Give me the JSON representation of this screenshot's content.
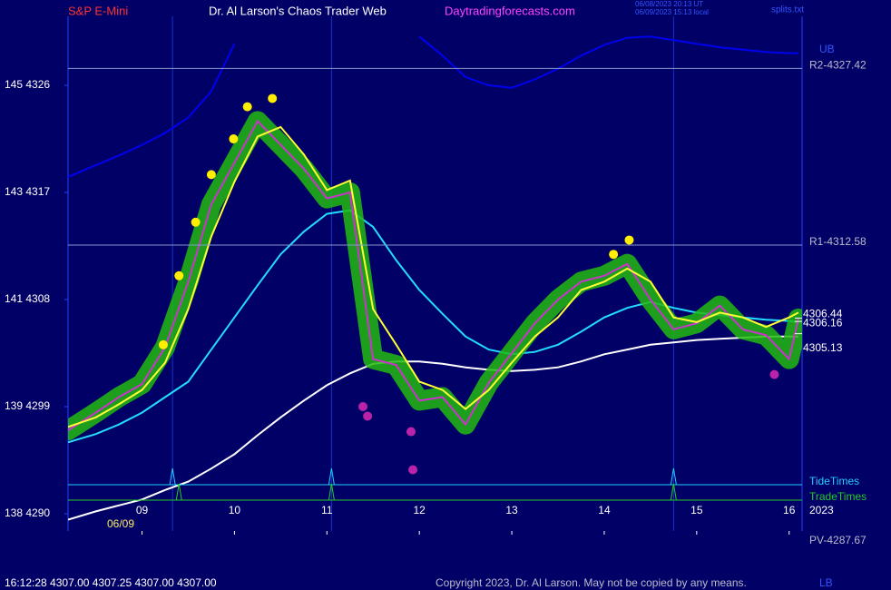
{
  "header": {
    "symbol": "S&P E-Mini",
    "site": "Dr. Al Larson's Chaos Trader Web",
    "url": "Daytradingforecasts.com",
    "time_ut": "06/08/2023 20:13 UT",
    "time_local": "06/09/2023 15:13 local",
    "file": "splits.txt"
  },
  "chart_data": {
    "type": "line",
    "x": [
      8.2,
      8.5,
      8.75,
      9,
      9.25,
      9.5,
      9.75,
      10,
      10.25,
      10.5,
      10.75,
      11,
      11.25,
      11.5,
      11.75,
      12,
      12.25,
      12.5,
      12.75,
      13,
      13.25,
      13.5,
      13.75,
      14,
      14.25,
      14.5,
      14.75,
      15,
      15.25,
      15.5,
      15.75,
      16,
      16.1
    ],
    "xlim": [
      8.2,
      16.14
    ],
    "xticks": [
      {
        "value": 9,
        "label": "09"
      },
      10,
      11,
      12,
      13,
      14,
      15,
      16
    ],
    "ylim": [
      4288.55,
      4331.8
    ],
    "yticks": [
      {
        "value": 4326,
        "label": "145  4326"
      },
      {
        "value": 4317,
        "label": "143  4317"
      },
      {
        "value": 4308,
        "label": "141  4308"
      },
      {
        "value": 4299,
        "label": "139  4299"
      },
      {
        "value": 4290,
        "label": "138  4290"
      }
    ],
    "date_label": "06/09",
    "year_label": "2023",
    "series": [
      {
        "color": "#0000ee",
        "values": [
          4318.3,
          4319.3,
          4320.1,
          4321.0,
          4322.0,
          4323.3,
          4325.5,
          4329.5,
          null,
          null,
          null,
          null,
          null,
          null,
          null,
          4330.1,
          4328.5,
          4326.7,
          4326.0,
          4325.8,
          4326.5,
          4327.4,
          4328.5,
          4329.4,
          4330.0,
          4330.1,
          4329.8,
          4329.5,
          4329.2,
          4329.0,
          4328.8,
          4328.7,
          4328.7
        ]
      },
      {
        "color": "#ffffff",
        "values": [
          4289.5,
          4290.2,
          4290.7,
          4291.2,
          4292.0,
          4292.7,
          4293.8,
          4295.0,
          4296.6,
          4298.1,
          4299.5,
          4300.8,
          4301.8,
          4302.6,
          4302.8,
          4302.8,
          4302.6,
          4302.3,
          4302.1,
          4302.0,
          4302.1,
          4302.3,
          4302.8,
          4303.4,
          4303.8,
          4304.2,
          4304.4,
          4304.6,
          4304.7,
          4304.8,
          4304.9,
          4304.9,
          4304.9
        ]
      },
      {
        "color": "#22ddff",
        "values": [
          4296.0,
          4296.7,
          4297.5,
          4298.5,
          4299.8,
          4301.1,
          4303.8,
          4306.5,
          4309.2,
          4311.8,
          4313.7,
          4315.2,
          4315.5,
          4314.1,
          4311.3,
          4308.8,
          4306.8,
          4304.9,
          4303.8,
          4303.4,
          4303.6,
          4304.2,
          4305.3,
          4306.5,
          4307.3,
          4307.8,
          4307.3,
          4306.9,
          4306.7,
          4306.5,
          4306.3,
          4306.2,
          4306.1
        ]
      },
      {
        "color": "#cc33cc",
        "glow_color": "#22bb11",
        "values": [
          4297.0,
          4298.5,
          4299.8,
          4300.9,
          4304.0,
          4309.5,
          4316.0,
          4319.5,
          4323.0,
          4321.0,
          4319.0,
          4316.5,
          4317.0,
          4303.0,
          4302.5,
          4299.5,
          4299.8,
          4297.5,
          4301.0,
          4303.5,
          4306.0,
          4308.0,
          4309.5,
          4310.0,
          4311.0,
          4308.0,
          4305.5,
          4306.0,
          4307.5,
          4305.5,
          4305.0,
          4303.0,
          4306.4
        ]
      },
      {
        "color": "#ffff33",
        "values": [
          4297.3,
          4298.1,
          4299.2,
          4300.4,
          4302.7,
          4307.2,
          4313.3,
          4317.9,
          4321.7,
          4322.5,
          4320.2,
          4317.2,
          4318.0,
          4307.2,
          4304.2,
          4301.1,
          4300.4,
          4298.8,
          4300.4,
          4302.7,
          4304.9,
          4306.5,
          4308.8,
          4309.5,
          4310.6,
          4309.5,
          4306.5,
          4306.1,
          4306.9,
          4306.5,
          4305.7,
          4306.5,
          4306.9
        ]
      }
    ],
    "levels": [
      {
        "label": "R2-4327.42",
        "value": 4327.42
      },
      {
        "label": "R1-4312.58",
        "value": 4312.58
      }
    ],
    "pivot_label": "PV-4287.67",
    "upper_band_label": "UB",
    "lower_band_label": "LB",
    "price_tags": [
      {
        "label": "4306.44",
        "value": 4306.44
      },
      {
        "label": "4306.16",
        "value": 4306.16
      },
      {
        "label": "4305.13",
        "value": 4305.13
      }
    ],
    "high_dots": {
      "color": "#ffee00",
      "x": [
        9.23,
        9.4,
        9.58,
        9.75,
        9.99,
        10.14,
        10.41,
        14.1,
        14.27
      ],
      "y": [
        4304.2,
        4310.0,
        4314.5,
        4318.5,
        4321.5,
        4324.2,
        4324.9,
        4311.8,
        4313.0
      ]
    },
    "low_dots": {
      "color": "#bb22aa",
      "x": [
        11.39,
        11.44,
        11.91,
        11.93,
        15.84
      ],
      "y": [
        4299.0,
        4298.2,
        4296.9,
        4293.7,
        4301.7
      ]
    },
    "tide_times": {
      "name": "TideTimes",
      "color": "#22ccff",
      "x": [
        9.33,
        11.05,
        14.75
      ]
    },
    "trade_times": {
      "name": "TradeTimes",
      "color": "#22cc22",
      "x": [
        9.4,
        11.05,
        14.75
      ]
    }
  },
  "footer": {
    "quote": "16:12:28  4307.00 4307.25 4307.00 4307.00",
    "copyright": "Copyright 2023, Dr. Al Larson. May not be copied by any means."
  }
}
